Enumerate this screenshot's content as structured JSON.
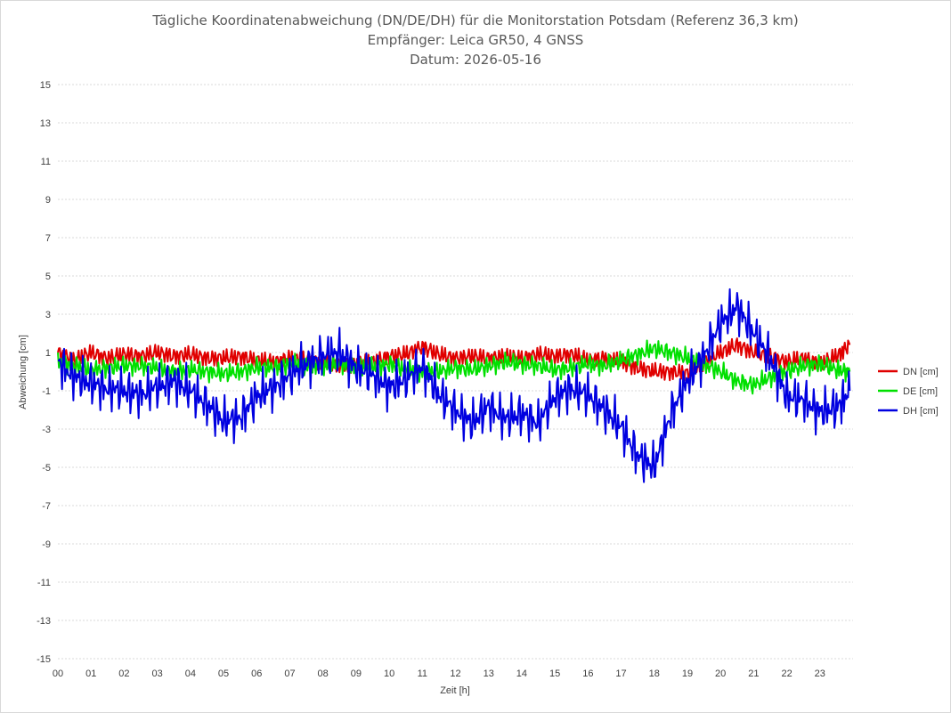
{
  "chart_data": {
    "type": "line",
    "title": [
      "Tägliche Koordinatenabweichung (DN/DE/DH) für die Monitorstation Potsdam (Referenz 36,3 km)",
      "Empfänger: Leica GR50, 4 GNSS",
      "Datum: 2026-05-16"
    ],
    "xlabel": "Zeit [h]",
    "ylabel": "Abweichung [cm]",
    "xlim": [
      0,
      24
    ],
    "ylim": [
      -15,
      15
    ],
    "x_tick_labels": [
      "00",
      "01",
      "02",
      "03",
      "04",
      "05",
      "06",
      "07",
      "08",
      "09",
      "10",
      "11",
      "12",
      "13",
      "14",
      "15",
      "16",
      "17",
      "18",
      "19",
      "20",
      "21",
      "22",
      "23"
    ],
    "y_tick_labels": [
      "15",
      "13",
      "11",
      "9",
      "7",
      "5",
      "3",
      "1",
      "-1",
      "-3",
      "-5",
      "-7",
      "-9",
      "-11",
      "-13",
      "-15"
    ],
    "grid": "horizontal dotted",
    "legend_position": "right",
    "x": [
      0,
      0.5,
      1,
      1.5,
      2,
      2.5,
      3,
      3.5,
      4,
      4.5,
      5,
      5.5,
      6,
      6.5,
      7,
      7.5,
      8,
      8.5,
      9,
      9.5,
      10,
      10.5,
      11,
      11.5,
      12,
      12.5,
      13,
      13.5,
      14,
      14.5,
      15,
      15.5,
      16,
      16.5,
      17,
      17.5,
      18,
      18.5,
      19,
      19.5,
      20,
      20.5,
      21,
      21.5,
      22,
      22.5,
      23,
      23.5,
      23.9
    ],
    "series": [
      {
        "name": "DN [cm]",
        "color": "#e00000",
        "values": [
          1.0,
          0.6,
          1.0,
          0.7,
          0.9,
          0.8,
          1.0,
          0.8,
          0.9,
          0.7,
          0.7,
          0.8,
          0.6,
          0.5,
          0.7,
          0.6,
          0.5,
          0.3,
          0.4,
          0.5,
          0.8,
          0.9,
          1.3,
          0.9,
          0.7,
          0.8,
          0.7,
          0.8,
          0.7,
          0.9,
          0.8,
          0.9,
          0.6,
          0.7,
          0.5,
          0.2,
          0.0,
          0.0,
          -0.1,
          0.5,
          1.0,
          1.4,
          1.0,
          0.8,
          0.5,
          0.7,
          0.4,
          0.8,
          1.4
        ]
      },
      {
        "name": "DE [cm]",
        "color": "#00e000",
        "values": [
          0.5,
          0.3,
          0.1,
          0.2,
          0.3,
          0.3,
          0.2,
          0.0,
          0.1,
          0.0,
          -0.1,
          0.0,
          0.2,
          0.2,
          0.4,
          0.3,
          0.3,
          0.4,
          0.3,
          0.2,
          0.4,
          0.1,
          0.0,
          0.0,
          0.2,
          0.1,
          0.3,
          0.5,
          0.4,
          0.3,
          0.1,
          0.2,
          0.4,
          0.3,
          0.6,
          0.9,
          1.2,
          1.0,
          0.7,
          0.4,
          0.0,
          -0.5,
          -0.7,
          -0.3,
          0.0,
          0.3,
          0.4,
          0.1,
          0.0
        ]
      },
      {
        "name": "DH [cm]",
        "color": "#0000e0",
        "values": [
          0.5,
          -0.3,
          -0.6,
          -0.9,
          -1.0,
          -1.2,
          -0.8,
          -0.5,
          -1.0,
          -1.7,
          -2.6,
          -2.4,
          -1.3,
          -0.8,
          -0.2,
          0.4,
          0.8,
          1.0,
          0.2,
          -0.2,
          -0.8,
          -0.4,
          0.3,
          -1.2,
          -2.0,
          -2.7,
          -1.8,
          -2.5,
          -2.2,
          -2.7,
          -1.3,
          -0.9,
          -1.2,
          -2.0,
          -2.9,
          -4.4,
          -5.0,
          -2.2,
          -0.5,
          0.8,
          2.5,
          3.4,
          2.0,
          0.7,
          -1.3,
          -1.5,
          -2.1,
          -1.9,
          -1.0
        ]
      }
    ]
  }
}
